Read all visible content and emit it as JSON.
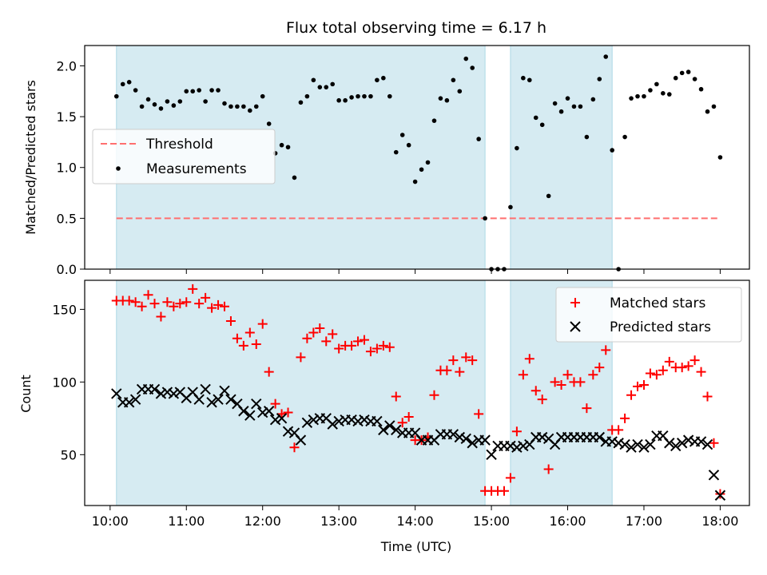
{
  "chart_data": [
    {
      "type": "scatter",
      "title": "Flux total observing time = 6.17 h",
      "xlabel": "",
      "ylabel": "Matched/Predicted stars",
      "ylim": [
        0,
        2.2
      ],
      "yticks": [
        "0.0",
        "0.5",
        "1.0",
        "1.5",
        "2.0"
      ],
      "xlim": [
        "09:40",
        "18:23"
      ],
      "shaded_intervals": [
        [
          "10:05",
          "14:55"
        ],
        [
          "15:15",
          "16:35"
        ]
      ],
      "shade_color": "#add8e6",
      "legend_position": "center-left",
      "series": [
        {
          "name": "Threshold",
          "style": "dashed-line",
          "color": "#ff6f6f",
          "x": [
            "10:05",
            "18:00"
          ],
          "y": [
            0.5,
            0.5
          ]
        },
        {
          "name": "Measurements",
          "style": "point",
          "color": "#000000",
          "x": [
            "10:05",
            "10:10",
            "10:15",
            "10:20",
            "10:25",
            "10:30",
            "10:35",
            "10:40",
            "10:45",
            "10:50",
            "10:55",
            "11:00",
            "11:05",
            "11:10",
            "11:15",
            "11:20",
            "11:25",
            "11:30",
            "11:35",
            "11:40",
            "11:45",
            "11:50",
            "11:55",
            "12:00",
            "12:05",
            "12:10",
            "12:15",
            "12:20",
            "12:25",
            "12:30",
            "12:35",
            "12:40",
            "12:45",
            "12:50",
            "12:55",
            "13:00",
            "13:05",
            "13:10",
            "13:15",
            "13:20",
            "13:25",
            "13:30",
            "13:35",
            "13:40",
            "13:45",
            "13:50",
            "13:55",
            "14:00",
            "14:05",
            "14:10",
            "14:15",
            "14:20",
            "14:25",
            "14:30",
            "14:35",
            "14:40",
            "14:45",
            "14:50",
            "14:55",
            "15:00",
            "15:05",
            "15:10",
            "15:15",
            "15:20",
            "15:25",
            "15:30",
            "15:35",
            "15:40",
            "15:45",
            "15:50",
            "15:55",
            "16:00",
            "16:05",
            "16:10",
            "16:15",
            "16:20",
            "16:25",
            "16:30",
            "16:35",
            "16:40",
            "16:45",
            "16:50",
            "16:55",
            "17:00",
            "17:05",
            "17:10",
            "17:15",
            "17:20",
            "17:25",
            "17:30",
            "17:35",
            "17:40",
            "17:45",
            "17:50",
            "17:55",
            "18:00"
          ],
          "y": [
            1.7,
            1.82,
            1.84,
            1.76,
            1.6,
            1.67,
            1.62,
            1.58,
            1.65,
            1.61,
            1.65,
            1.75,
            1.75,
            1.76,
            1.65,
            1.76,
            1.76,
            1.63,
            1.6,
            1.6,
            1.6,
            1.56,
            1.6,
            1.7,
            1.43,
            1.14,
            1.22,
            1.2,
            0.9,
            1.64,
            1.7,
            1.86,
            1.79,
            1.79,
            1.82,
            1.66,
            1.66,
            1.69,
            1.7,
            1.7,
            1.7,
            1.86,
            1.88,
            1.7,
            1.15,
            1.32,
            1.22,
            0.86,
            0.98,
            1.05,
            1.46,
            1.68,
            1.66,
            1.86,
            1.75,
            2.07,
            1.98,
            1.28,
            0.5,
            0,
            0,
            0,
            0.61,
            1.19,
            1.88,
            1.86,
            1.49,
            1.42,
            0.72,
            1.63,
            1.55,
            1.68,
            1.6,
            1.6,
            1.3,
            1.67,
            1.87,
            2.09,
            1.17,
            0,
            1.3,
            1.68,
            1.7,
            1.7,
            1.76,
            1.82,
            1.73,
            1.72,
            1.88,
            1.93,
            1.94,
            1.87,
            1.77,
            1.55,
            1.6,
            1.1
          ]
        }
      ]
    },
    {
      "type": "scatter",
      "title": "",
      "xlabel": "Time (UTC)",
      "ylabel": "Count",
      "ylim": [
        15,
        170
      ],
      "yticks": [
        "50",
        "100",
        "150"
      ],
      "xlim": [
        "09:40",
        "18:23"
      ],
      "xticks": [
        "10:00",
        "11:00",
        "12:00",
        "13:00",
        "14:00",
        "15:00",
        "16:00",
        "17:00",
        "18:00"
      ],
      "shaded_intervals": [
        [
          "10:05",
          "14:55"
        ],
        [
          "15:15",
          "16:35"
        ]
      ],
      "shade_color": "#add8e6",
      "legend_position": "top-right",
      "series": [
        {
          "name": "Matched stars",
          "marker": "plus",
          "color": "#ff0000",
          "x": [
            "10:05",
            "10:10",
            "10:15",
            "10:20",
            "10:25",
            "10:30",
            "10:35",
            "10:40",
            "10:45",
            "10:50",
            "10:55",
            "11:00",
            "11:05",
            "11:10",
            "11:15",
            "11:20",
            "11:25",
            "11:30",
            "11:35",
            "11:40",
            "11:45",
            "11:50",
            "11:55",
            "12:00",
            "12:05",
            "12:10",
            "12:15",
            "12:20",
            "12:25",
            "12:30",
            "12:35",
            "12:40",
            "12:45",
            "12:50",
            "12:55",
            "13:00",
            "13:05",
            "13:10",
            "13:15",
            "13:20",
            "13:25",
            "13:30",
            "13:35",
            "13:40",
            "13:45",
            "13:50",
            "13:55",
            "14:00",
            "14:05",
            "14:10",
            "14:15",
            "14:20",
            "14:25",
            "14:30",
            "14:35",
            "14:40",
            "14:45",
            "14:50",
            "14:55",
            "15:00",
            "15:05",
            "15:10",
            "15:15",
            "15:20",
            "15:25",
            "15:30",
            "15:35",
            "15:40",
            "15:45",
            "15:50",
            "15:55",
            "16:00",
            "16:05",
            "16:10",
            "16:15",
            "16:20",
            "16:25",
            "16:30",
            "16:35",
            "16:40",
            "16:45",
            "16:50",
            "16:55",
            "17:00",
            "17:05",
            "17:10",
            "17:15",
            "17:20",
            "17:25",
            "17:30",
            "17:35",
            "17:40",
            "17:45",
            "17:50",
            "17:55",
            "18:00"
          ],
          "y": [
            156,
            156,
            156,
            155,
            152,
            160,
            154,
            145,
            155,
            152,
            154,
            155,
            164,
            154,
            158,
            151,
            153,
            152,
            142,
            130,
            125,
            134,
            126,
            140,
            107,
            85,
            78,
            79,
            55,
            117,
            130,
            134,
            137,
            128,
            133,
            123,
            125,
            125,
            128,
            129,
            121,
            123,
            125,
            124,
            90,
            72,
            76,
            60,
            60,
            62,
            91,
            108,
            108,
            115,
            107,
            117,
            115,
            78,
            25,
            25,
            25,
            25,
            34,
            66,
            105,
            116,
            94,
            88,
            40,
            100,
            98,
            105,
            100,
            100,
            82,
            105,
            110,
            122,
            67,
            67,
            75,
            91,
            97,
            98,
            106,
            105,
            108,
            114,
            110,
            110,
            111,
            115,
            107,
            90,
            58,
            23
          ]
        },
        {
          "name": "Predicted stars",
          "marker": "x",
          "color": "#000000",
          "x": [
            "10:05",
            "10:10",
            "10:15",
            "10:20",
            "10:25",
            "10:30",
            "10:35",
            "10:40",
            "10:45",
            "10:50",
            "10:55",
            "11:00",
            "11:05",
            "11:10",
            "11:15",
            "11:20",
            "11:25",
            "11:30",
            "11:35",
            "11:40",
            "11:45",
            "11:50",
            "11:55",
            "12:00",
            "12:05",
            "12:10",
            "12:15",
            "12:20",
            "12:25",
            "12:30",
            "12:35",
            "12:40",
            "12:45",
            "12:50",
            "12:55",
            "13:00",
            "13:05",
            "13:10",
            "13:15",
            "13:20",
            "13:25",
            "13:30",
            "13:35",
            "13:40",
            "13:45",
            "13:50",
            "13:55",
            "14:00",
            "14:05",
            "14:10",
            "14:15",
            "14:20",
            "14:25",
            "14:30",
            "14:35",
            "14:40",
            "14:45",
            "14:50",
            "14:55",
            "15:00",
            "15:05",
            "15:10",
            "15:15",
            "15:20",
            "15:25",
            "15:30",
            "15:35",
            "15:40",
            "15:45",
            "15:50",
            "15:55",
            "16:00",
            "16:05",
            "16:10",
            "16:15",
            "16:20",
            "16:25",
            "16:30",
            "16:35",
            "16:40",
            "16:45",
            "16:50",
            "16:55",
            "17:00",
            "17:05",
            "17:10",
            "17:15",
            "17:20",
            "17:25",
            "17:30",
            "17:35",
            "17:40",
            "17:45",
            "17:50",
            "17:55",
            "18:00"
          ],
          "y": [
            92,
            86,
            86,
            88,
            95,
            95,
            95,
            92,
            93,
            92,
            93,
            89,
            93,
            88,
            95,
            86,
            88,
            94,
            88,
            85,
            80,
            77,
            85,
            79,
            80,
            74,
            75,
            66,
            65,
            60,
            72,
            74,
            75,
            75,
            71,
            73,
            74,
            74,
            73,
            74,
            73,
            73,
            67,
            70,
            67,
            65,
            65,
            65,
            60,
            60,
            60,
            64,
            64,
            64,
            62,
            61,
            58,
            60,
            60,
            50,
            56,
            56,
            56,
            55,
            56,
            57,
            62,
            62,
            61,
            57,
            62,
            62,
            62,
            62,
            62,
            62,
            62,
            59,
            59,
            58,
            57,
            55,
            57,
            55,
            57,
            63,
            63,
            58,
            56,
            58,
            60,
            59,
            59,
            57,
            36,
            22
          ]
        }
      ]
    }
  ]
}
